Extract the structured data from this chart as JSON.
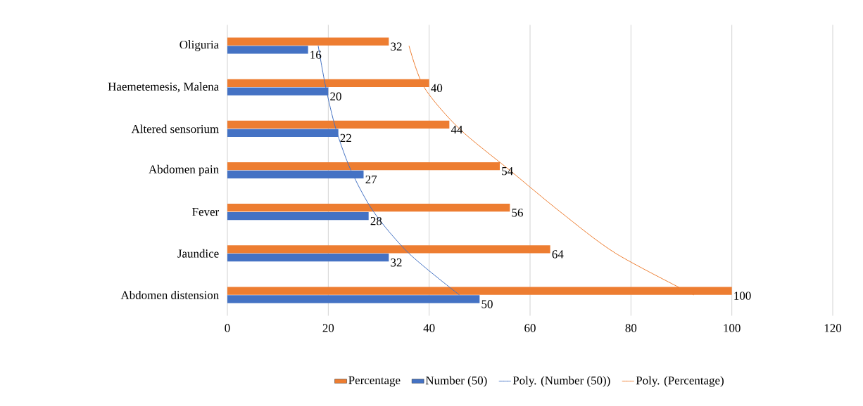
{
  "chart_data": {
    "type": "bar",
    "orientation": "horizontal",
    "categories": [
      "Oliguria",
      "Haemetemesis, Malena",
      "Altered sensorium",
      "Abdomen pain",
      "Fever",
      "Jaundice",
      "Abdomen distension"
    ],
    "series": [
      {
        "name": "Percentage",
        "color": "#ed7d31",
        "values": [
          32,
          40,
          44,
          54,
          56,
          64,
          100
        ],
        "value_labels": [
          "32",
          "40",
          "44",
          "54",
          "56",
          "64",
          "100"
        ]
      },
      {
        "name": "Number (50)",
        "color": "#4472c4",
        "values": [
          16,
          20,
          22,
          27,
          28,
          32,
          50
        ],
        "value_labels": [
          "16",
          "20",
          "22",
          "27",
          "28",
          "32",
          "50"
        ]
      },
      {
        "name": "Poly. (Number (50))",
        "type": "line",
        "color": "#4472c4",
        "values": [
          18,
          19.5,
          21.5,
          24.5,
          29,
          36,
          46
        ]
      },
      {
        "name": "Poly. (Percentage)",
        "type": "line",
        "color": "#ed7d31",
        "values": [
          36,
          39,
          46,
          56,
          66,
          77,
          92.5
        ]
      }
    ],
    "xlim": [
      0,
      120
    ],
    "xticks": [
      0,
      20,
      40,
      60,
      80,
      100,
      120
    ],
    "grid": "x",
    "legend": "bottom",
    "marker": "none",
    "line_style": "solid"
  }
}
